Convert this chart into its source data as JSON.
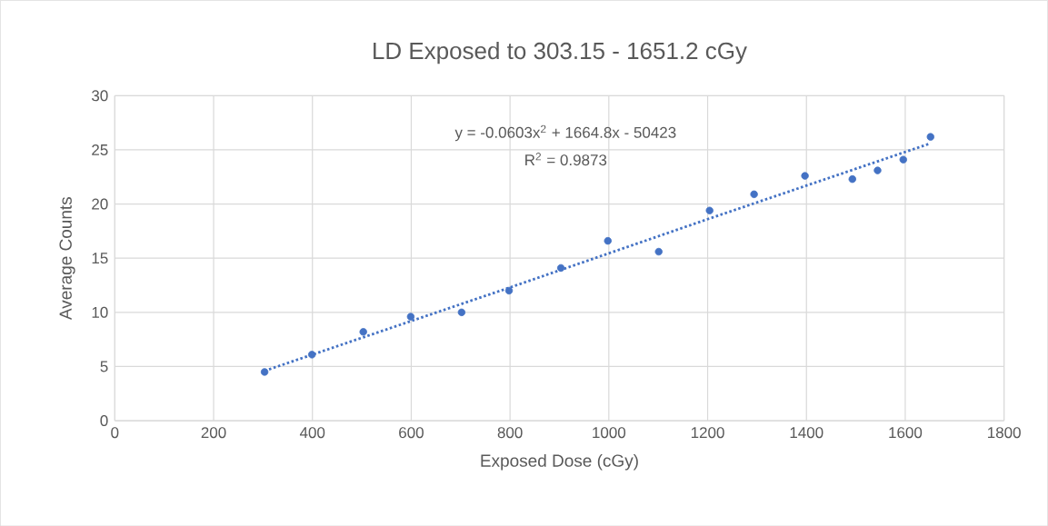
{
  "chart_data": {
    "type": "scatter",
    "title": "LD Exposed to 303.15 - 1651.2 cGy",
    "xlabel": "Exposed Dose (cGy)",
    "ylabel": "Average Counts",
    "xlim": [
      0,
      1800
    ],
    "ylim": [
      0,
      30
    ],
    "xticks": [
      0,
      200,
      400,
      600,
      800,
      1000,
      1200,
      1400,
      1600,
      1800
    ],
    "yticks": [
      0,
      5,
      10,
      15,
      20,
      25,
      30
    ],
    "grid": true,
    "annotations": [
      "y = -0.0603x$^{2}$ + 1664.8x - 50423",
      "R$^{2}$ = 0.9873"
    ],
    "series": [
      {
        "color": "#4472c4",
        "marker": "circle",
        "x": [
          303.15,
          399,
          503,
          599,
          702,
          798,
          903,
          998,
          1101,
          1204,
          1294,
          1397,
          1493,
          1544,
          1596,
          1651.2
        ],
        "values": [
          4.5,
          6.1,
          8.2,
          9.6,
          10.0,
          12.0,
          14.1,
          16.6,
          15.6,
          19.4,
          20.9,
          22.6,
          22.3,
          23.1,
          24.1,
          26.2
        ]
      },
      {
        "type": "line",
        "color": "#4472c4",
        "line_style": "dotted",
        "marker": "none",
        "x": [
          303.15,
          800,
          1200,
          1651.2
        ],
        "values": [
          4.6,
          12.3,
          18.6,
          25.6
        ]
      }
    ]
  }
}
